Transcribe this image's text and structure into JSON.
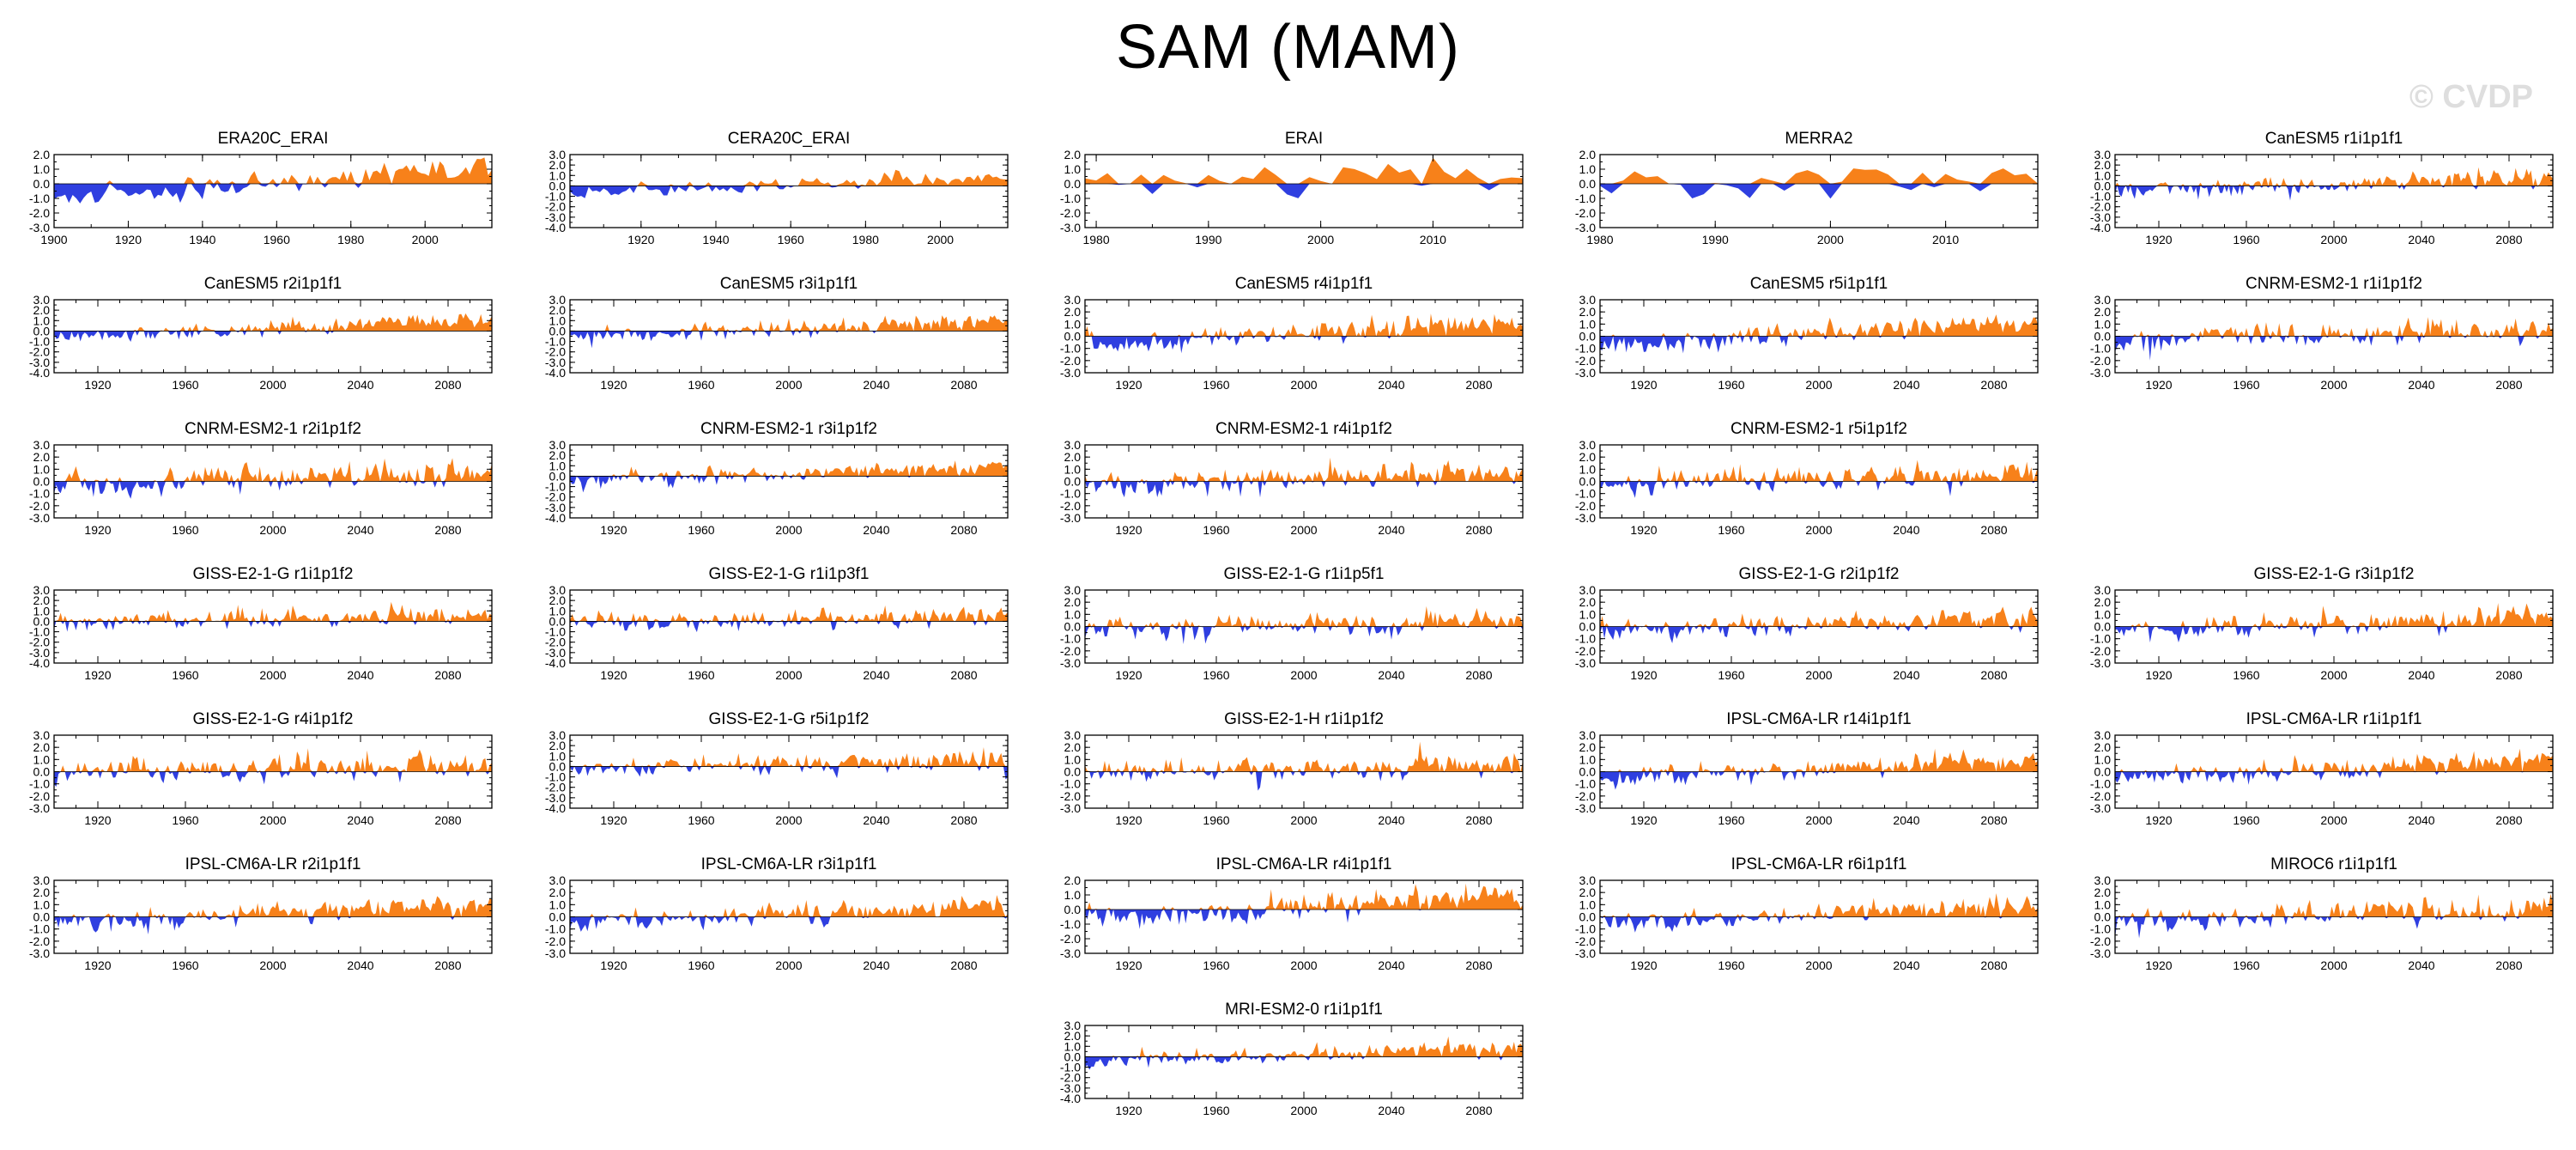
{
  "title": "SAM (MAM)",
  "watermark": "© CVDP",
  "colors": {
    "positive": "#f7811a",
    "negative": "#2f3fe0",
    "axis": "#000000"
  },
  "chart_data": {
    "type": "area",
    "description_units": "SAM index time series; positive values filled orange, negative values filled blue",
    "panels": [
      {
        "id": "era20c_erai",
        "title": "ERA20C_ERAI",
        "row": 0,
        "col": 0,
        "x_range": [
          1900,
          2018
        ],
        "x_ticks": [
          1900,
          1920,
          1940,
          1960,
          1980,
          2000
        ],
        "y_range": [
          -3,
          2
        ],
        "y_ticks": [
          "2.0",
          "1.0",
          "0.0",
          "-1.0",
          "-2.0",
          "-3.0"
        ],
        "trend": [
          -1.0,
          1.1
        ],
        "amp": 0.7,
        "seed": 11
      },
      {
        "id": "cera20c_erai",
        "title": "CERA20C_ERAI",
        "row": 0,
        "col": 1,
        "x_range": [
          1901,
          2018
        ],
        "x_ticks": [
          1920,
          1940,
          1960,
          1980,
          2000
        ],
        "y_range": [
          -4,
          3
        ],
        "y_ticks": [
          "3.0",
          "2.0",
          "1.0",
          "0.0",
          "-1.0",
          "-2.0",
          "-3.0",
          "-4.0"
        ],
        "trend": [
          -0.6,
          1.0
        ],
        "amp": 0.7,
        "seed": 23
      },
      {
        "id": "erai",
        "title": "ERAI",
        "row": 0,
        "col": 2,
        "x_range": [
          1979,
          2018
        ],
        "x_ticks": [
          1980,
          1990,
          2000,
          2010
        ],
        "y_range": [
          -3,
          2
        ],
        "y_ticks": [
          "2.0",
          "1.0",
          "0.0",
          "-1.0",
          "-2.0",
          "-3.0"
        ],
        "trend": [
          -0.2,
          0.6
        ],
        "amp": 1.1,
        "seed": 37
      },
      {
        "id": "merra2",
        "title": "MERRA2",
        "row": 0,
        "col": 3,
        "x_range": [
          1980,
          2018
        ],
        "x_ticks": [
          1980,
          1990,
          2000,
          2010
        ],
        "y_range": [
          -3,
          2
        ],
        "y_ticks": [
          "2.0",
          "1.0",
          "0.0",
          "-1.0",
          "-2.0",
          "-3.0"
        ],
        "trend": [
          -0.2,
          0.6
        ],
        "amp": 1.1,
        "seed": 41
      },
      {
        "id": "canesm5_r1",
        "title": "CanESM5 r1i1p1f1",
        "row": 0,
        "col": 4,
        "x_range": [
          1900,
          2100
        ],
        "x_ticks": [
          1920,
          1960,
          2000,
          2040,
          2080
        ],
        "y_range": [
          -4,
          3
        ],
        "y_ticks": [
          "3.0",
          "2.0",
          "1.0",
          "0.0",
          "-1.0",
          "-2.0",
          "-3.0",
          "-4.0"
        ],
        "trend": [
          -0.5,
          0.9
        ],
        "amp": 0.8,
        "seed": 53
      },
      {
        "id": "canesm5_r2",
        "title": "CanESM5 r2i1p1f1",
        "row": 1,
        "col": 0,
        "x_range": [
          1900,
          2100
        ],
        "x_ticks": [
          1920,
          1960,
          2000,
          2040,
          2080
        ],
        "y_range": [
          -4,
          3
        ],
        "y_ticks": [
          "3.0",
          "2.0",
          "1.0",
          "0.0",
          "-1.0",
          "-2.0",
          "-3.0",
          "-4.0"
        ],
        "trend": [
          -0.6,
          1.2
        ],
        "amp": 0.7,
        "seed": 61
      },
      {
        "id": "canesm5_r3",
        "title": "CanESM5 r3i1p1f1",
        "row": 1,
        "col": 1,
        "x_range": [
          1900,
          2100
        ],
        "x_ticks": [
          1920,
          1960,
          2000,
          2040,
          2080
        ],
        "y_range": [
          -4,
          3
        ],
        "y_ticks": [
          "3.0",
          "2.0",
          "1.0",
          "0.0",
          "-1.0",
          "-2.0",
          "-3.0",
          "-4.0"
        ],
        "trend": [
          -0.6,
          1.1
        ],
        "amp": 0.7,
        "seed": 67
      },
      {
        "id": "canesm5_r4",
        "title": "CanESM5 r4i1p1f1",
        "row": 1,
        "col": 2,
        "x_range": [
          1900,
          2100
        ],
        "x_ticks": [
          1920,
          1960,
          2000,
          2040,
          2080
        ],
        "y_range": [
          -3,
          3
        ],
        "y_ticks": [
          "3.0",
          "2.0",
          "1.0",
          "0.0",
          "-1.0",
          "-2.0",
          "-3.0"
        ],
        "trend": [
          -0.8,
          1.3
        ],
        "amp": 0.8,
        "seed": 71
      },
      {
        "id": "canesm5_r5",
        "title": "CanESM5 r5i1p1f1",
        "row": 1,
        "col": 3,
        "x_range": [
          1900,
          2100
        ],
        "x_ticks": [
          1920,
          1960,
          2000,
          2040,
          2080
        ],
        "y_range": [
          -3,
          3
        ],
        "y_ticks": [
          "3.0",
          "2.0",
          "1.0",
          "0.0",
          "-1.0",
          "-2.0",
          "-3.0"
        ],
        "trend": [
          -0.8,
          1.3
        ],
        "amp": 0.8,
        "seed": 79
      },
      {
        "id": "cnrm_r1",
        "title": "CNRM-ESM2-1 r1i1p1f2",
        "row": 1,
        "col": 4,
        "x_range": [
          1900,
          2100
        ],
        "x_ticks": [
          1920,
          1960,
          2000,
          2040,
          2080
        ],
        "y_range": [
          -3,
          3
        ],
        "y_ticks": [
          "3.0",
          "2.0",
          "1.0",
          "0.0",
          "-1.0",
          "-2.0",
          "-3.0"
        ],
        "trend": [
          -0.3,
          0.6
        ],
        "amp": 0.9,
        "seed": 83
      },
      {
        "id": "cnrm_r2",
        "title": "CNRM-ESM2-1 r2i1p1f2",
        "row": 2,
        "col": 0,
        "x_range": [
          1900,
          2100
        ],
        "x_ticks": [
          1920,
          1960,
          2000,
          2040,
          2080
        ],
        "y_range": [
          -3,
          3
        ],
        "y_ticks": [
          "3.0",
          "2.0",
          "1.0",
          "0.0",
          "-1.0",
          "-2.0",
          "-3.0"
        ],
        "trend": [
          -0.4,
          0.8
        ],
        "amp": 0.9,
        "seed": 89
      },
      {
        "id": "cnrm_r3",
        "title": "CNRM-ESM2-1 r3i1p1f2",
        "row": 2,
        "col": 1,
        "x_range": [
          1900,
          2100
        ],
        "x_ticks": [
          1920,
          1960,
          2000,
          2040,
          2080
        ],
        "y_range": [
          -4,
          3
        ],
        "y_ticks": [
          "3.0",
          "2.0",
          "1.0",
          "0.0",
          "-1.0",
          "-2.0",
          "-3.0",
          "-4.0"
        ],
        "trend": [
          -0.4,
          0.9
        ],
        "amp": 0.8,
        "seed": 97
      },
      {
        "id": "cnrm_r4",
        "title": "CNRM-ESM2-1 r4i1p1f2",
        "row": 2,
        "col": 2,
        "x_range": [
          1900,
          2100
        ],
        "x_ticks": [
          1920,
          1960,
          2000,
          2040,
          2080
        ],
        "y_range": [
          -3,
          3
        ],
        "y_ticks": [
          "3.0",
          "2.0",
          "1.0",
          "0.0",
          "-1.0",
          "-2.0",
          "-3.0"
        ],
        "trend": [
          -0.3,
          0.8
        ],
        "amp": 0.9,
        "seed": 101
      },
      {
        "id": "cnrm_r5",
        "title": "CNRM-ESM2-1 r5i1p1f2",
        "row": 2,
        "col": 3,
        "x_range": [
          1900,
          2100
        ],
        "x_ticks": [
          1920,
          1960,
          2000,
          2040,
          2080
        ],
        "y_range": [
          -3,
          3
        ],
        "y_ticks": [
          "3.0",
          "2.0",
          "1.0",
          "0.0",
          "-1.0",
          "-2.0",
          "-3.0"
        ],
        "trend": [
          -0.3,
          0.7
        ],
        "amp": 0.9,
        "seed": 103
      },
      {
        "id": "giss_g_r1p3",
        "title": "GISS-E2-1-G r1i1p1f2",
        "row": 3,
        "col": 0,
        "x_range": [
          1900,
          2100
        ],
        "x_ticks": [
          1920,
          1960,
          2000,
          2040,
          2080
        ],
        "y_range": [
          -4,
          3
        ],
        "y_ticks": [
          "3.0",
          "2.0",
          "1.0",
          "0.0",
          "-1.0",
          "-2.0",
          "-3.0",
          "-4.0"
        ],
        "trend": [
          -0.2,
          0.7
        ],
        "amp": 0.9,
        "seed": 107
      },
      {
        "id": "giss_g_r1p3f1",
        "title": "GISS-E2-1-G r1i1p3f1",
        "row": 3,
        "col": 1,
        "x_range": [
          1900,
          2100
        ],
        "x_ticks": [
          1920,
          1960,
          2000,
          2040,
          2080
        ],
        "y_range": [
          -4,
          3
        ],
        "y_ticks": [
          "3.0",
          "2.0",
          "1.0",
          "0.0",
          "-1.0",
          "-2.0",
          "-3.0",
          "-4.0"
        ],
        "trend": [
          -0.2,
          0.6
        ],
        "amp": 0.9,
        "seed": 109
      },
      {
        "id": "giss_g_r1p5",
        "title": "GISS-E2-1-G r1i1p5f1",
        "row": 3,
        "col": 2,
        "x_range": [
          1900,
          2100
        ],
        "x_ticks": [
          1920,
          1960,
          2000,
          2040,
          2080
        ],
        "y_range": [
          -3,
          3
        ],
        "y_ticks": [
          "3.0",
          "2.0",
          "1.0",
          "0.0",
          "-1.0",
          "-2.0",
          "-3.0"
        ],
        "trend": [
          -0.1,
          0.5
        ],
        "amp": 0.9,
        "seed": 113
      },
      {
        "id": "giss_g_r2",
        "title": "GISS-E2-1-G r2i1p1f2",
        "row": 3,
        "col": 3,
        "x_range": [
          1900,
          2100
        ],
        "x_ticks": [
          1920,
          1960,
          2000,
          2040,
          2080
        ],
        "y_range": [
          -3,
          3
        ],
        "y_ticks": [
          "3.0",
          "2.0",
          "1.0",
          "0.0",
          "-1.0",
          "-2.0",
          "-3.0"
        ],
        "trend": [
          -0.3,
          0.8
        ],
        "amp": 0.9,
        "seed": 127
      },
      {
        "id": "giss_g_r3",
        "title": "GISS-E2-1-G r3i1p1f2",
        "row": 3,
        "col": 4,
        "x_range": [
          1900,
          2100
        ],
        "x_ticks": [
          1920,
          1960,
          2000,
          2040,
          2080
        ],
        "y_range": [
          -3,
          3
        ],
        "y_ticks": [
          "3.0",
          "2.0",
          "1.0",
          "0.0",
          "-1.0",
          "-2.0",
          "-3.0"
        ],
        "trend": [
          -0.3,
          0.8
        ],
        "amp": 0.9,
        "seed": 131
      },
      {
        "id": "giss_g_r4",
        "title": "GISS-E2-1-G r4i1p1f2",
        "row": 4,
        "col": 0,
        "x_range": [
          1900,
          2100
        ],
        "x_ticks": [
          1920,
          1960,
          2000,
          2040,
          2080
        ],
        "y_range": [
          -3,
          3
        ],
        "y_ticks": [
          "3.0",
          "2.0",
          "1.0",
          "0.0",
          "-1.0",
          "-2.0",
          "-3.0"
        ],
        "trend": [
          -0.2,
          0.7
        ],
        "amp": 0.9,
        "seed": 137
      },
      {
        "id": "giss_g_r5",
        "title": "GISS-E2-1-G r5i1p1f2",
        "row": 4,
        "col": 1,
        "x_range": [
          1900,
          2100
        ],
        "x_ticks": [
          1920,
          1960,
          2000,
          2040,
          2080
        ],
        "y_range": [
          -4,
          3
        ],
        "y_ticks": [
          "3.0",
          "2.0",
          "1.0",
          "0.0",
          "-1.0",
          "-2.0",
          "-3.0",
          "-4.0"
        ],
        "trend": [
          -0.2,
          0.7
        ],
        "amp": 0.9,
        "seed": 139
      },
      {
        "id": "giss_h_r1",
        "title": "GISS-E2-1-H r1i1p1f2",
        "row": 4,
        "col": 2,
        "x_range": [
          1900,
          2100
        ],
        "x_ticks": [
          1920,
          1960,
          2000,
          2040,
          2080
        ],
        "y_range": [
          -3,
          3
        ],
        "y_ticks": [
          "3.0",
          "2.0",
          "1.0",
          "0.0",
          "-1.0",
          "-2.0",
          "-3.0"
        ],
        "trend": [
          -0.2,
          0.7
        ],
        "amp": 0.9,
        "seed": 149
      },
      {
        "id": "ipsl_r14",
        "title": "IPSL-CM6A-LR r14i1p1f1",
        "row": 4,
        "col": 3,
        "x_range": [
          1900,
          2100
        ],
        "x_ticks": [
          1920,
          1960,
          2000,
          2040,
          2080
        ],
        "y_range": [
          -3,
          3
        ],
        "y_ticks": [
          "3.0",
          "2.0",
          "1.0",
          "0.0",
          "-1.0",
          "-2.0",
          "-3.0"
        ],
        "trend": [
          -0.5,
          1.0
        ],
        "amp": 0.8,
        "seed": 151
      },
      {
        "id": "ipsl_r1",
        "title": "IPSL-CM6A-LR r1i1p1f1",
        "row": 4,
        "col": 4,
        "x_range": [
          1900,
          2100
        ],
        "x_ticks": [
          1920,
          1960,
          2000,
          2040,
          2080
        ],
        "y_range": [
          -3,
          3
        ],
        "y_ticks": [
          "3.0",
          "2.0",
          "1.0",
          "0.0",
          "-1.0",
          "-2.0",
          "-3.0"
        ],
        "trend": [
          -0.5,
          1.0
        ],
        "amp": 0.8,
        "seed": 157
      },
      {
        "id": "ipsl_r2",
        "title": "IPSL-CM6A-LR r2i1p1f1",
        "row": 5,
        "col": 0,
        "x_range": [
          1900,
          2100
        ],
        "x_ticks": [
          1920,
          1960,
          2000,
          2040,
          2080
        ],
        "y_range": [
          -3,
          3
        ],
        "y_ticks": [
          "3.0",
          "2.0",
          "1.0",
          "0.0",
          "-1.0",
          "-2.0",
          "-3.0"
        ],
        "trend": [
          -0.5,
          1.0
        ],
        "amp": 0.8,
        "seed": 163
      },
      {
        "id": "ipsl_r3",
        "title": "IPSL-CM6A-LR r3i1p1f1",
        "row": 5,
        "col": 1,
        "x_range": [
          1900,
          2100
        ],
        "x_ticks": [
          1920,
          1960,
          2000,
          2040,
          2080
        ],
        "y_range": [
          -3,
          3
        ],
        "y_ticks": [
          "3.0",
          "2.0",
          "1.0",
          "0.0",
          "-1.0",
          "-2.0",
          "-3.0"
        ],
        "trend": [
          -0.5,
          1.0
        ],
        "amp": 0.8,
        "seed": 167
      },
      {
        "id": "ipsl_r4",
        "title": "IPSL-CM6A-LR r4i1p1f1",
        "row": 5,
        "col": 2,
        "x_range": [
          1900,
          2100
        ],
        "x_ticks": [
          1920,
          1960,
          2000,
          2040,
          2080
        ],
        "y_range": [
          -3,
          2
        ],
        "y_ticks": [
          "2.0",
          "1.0",
          "0.0",
          "-1.0",
          "-2.0",
          "-3.0"
        ],
        "trend": [
          -0.6,
          1.0
        ],
        "amp": 0.8,
        "seed": 173
      },
      {
        "id": "ipsl_r6",
        "title": "IPSL-CM6A-LR r6i1p1f1",
        "row": 5,
        "col": 3,
        "x_range": [
          1900,
          2100
        ],
        "x_ticks": [
          1920,
          1960,
          2000,
          2040,
          2080
        ],
        "y_range": [
          -3,
          3
        ],
        "y_ticks": [
          "3.0",
          "2.0",
          "1.0",
          "0.0",
          "-1.0",
          "-2.0",
          "-3.0"
        ],
        "trend": [
          -0.5,
          1.0
        ],
        "amp": 0.8,
        "seed": 179
      },
      {
        "id": "miroc6_r1",
        "title": "MIROC6 r1i1p1f1",
        "row": 5,
        "col": 4,
        "x_range": [
          1900,
          2100
        ],
        "x_ticks": [
          1920,
          1960,
          2000,
          2040,
          2080
        ],
        "y_range": [
          -3,
          3
        ],
        "y_ticks": [
          "3.0",
          "2.0",
          "1.0",
          "0.0",
          "-1.0",
          "-2.0",
          "-3.0"
        ],
        "trend": [
          -0.3,
          0.8
        ],
        "amp": 0.9,
        "seed": 181
      },
      {
        "id": "mri_r1",
        "title": "MRI-ESM2-0 r1i1p1f1",
        "row": 6,
        "col": 2,
        "x_range": [
          1900,
          2100
        ],
        "x_ticks": [
          1920,
          1960,
          2000,
          2040,
          2080
        ],
        "y_range": [
          -4,
          3
        ],
        "y_ticks": [
          "3.0",
          "2.0",
          "1.0",
          "0.0",
          "-1.0",
          "-2.0",
          "-3.0",
          "-4.0"
        ],
        "trend": [
          -0.4,
          0.9
        ],
        "amp": 0.8,
        "seed": 191
      }
    ]
  }
}
